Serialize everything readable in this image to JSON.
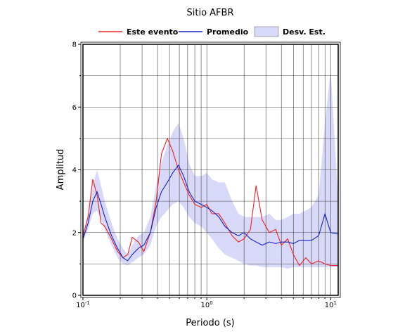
{
  "chart_data": {
    "type": "line",
    "title": "Sitio AFBR",
    "xlabel": "Periodo (s)",
    "ylabel": "Amplitud",
    "xscale": "log",
    "xlim": [
      0.1,
      11.5
    ],
    "ylim": [
      0,
      8
    ],
    "xticks": [
      {
        "value": 0.1,
        "base": "10",
        "exponent": "-1"
      },
      {
        "value": 1,
        "base": "10",
        "exponent": "0"
      },
      {
        "value": 10,
        "base": "10",
        "exponent": "1"
      }
    ],
    "x_minor_ticks": [
      0.2,
      0.3,
      0.4,
      0.5,
      0.6,
      0.7,
      0.8,
      0.9,
      2,
      3,
      4,
      5,
      6,
      7,
      8,
      9
    ],
    "yticks": [
      0,
      2,
      4,
      6,
      8
    ],
    "y_minor_ticks": [
      1,
      3,
      5,
      7
    ],
    "grid": true,
    "legend": "top",
    "x": [
      0.1,
      0.11,
      0.12,
      0.13,
      0.14,
      0.15,
      0.17,
      0.19,
      0.21,
      0.23,
      0.25,
      0.28,
      0.31,
      0.35,
      0.39,
      0.43,
      0.48,
      0.53,
      0.59,
      0.65,
      0.72,
      0.8,
      0.9,
      1.0,
      1.1,
      1.25,
      1.4,
      1.6,
      1.8,
      2.0,
      2.25,
      2.5,
      2.8,
      3.2,
      3.6,
      4,
      4.5,
      5,
      5.6,
      6.3,
      7,
      8,
      9,
      10,
      11.5
    ],
    "series": [
      {
        "name": "Este evento",
        "color": "#ee2222",
        "values": [
          1.9,
          2.5,
          3.7,
          3.2,
          2.3,
          2.2,
          1.8,
          1.4,
          1.2,
          1.3,
          1.85,
          1.7,
          1.4,
          2.0,
          3.0,
          4.5,
          5.0,
          4.6,
          4.0,
          3.6,
          3.2,
          2.9,
          2.8,
          2.9,
          2.6,
          2.6,
          2.3,
          1.9,
          1.7,
          1.8,
          2.1,
          3.5,
          2.4,
          2.0,
          2.1,
          1.6,
          1.8,
          1.3,
          0.95,
          1.2,
          1.0,
          1.1,
          1.0,
          0.95,
          0.95
        ]
      },
      {
        "name": "Promedio",
        "color": "#1122cc",
        "values": [
          1.8,
          2.3,
          3.0,
          3.3,
          2.9,
          2.5,
          1.9,
          1.5,
          1.2,
          1.1,
          1.3,
          1.5,
          1.6,
          2.0,
          2.8,
          3.3,
          3.6,
          3.9,
          4.15,
          3.8,
          3.3,
          3.0,
          2.9,
          2.8,
          2.7,
          2.5,
          2.2,
          2.0,
          1.9,
          2.0,
          1.8,
          1.7,
          1.6,
          1.7,
          1.65,
          1.7,
          1.7,
          1.65,
          1.75,
          1.75,
          1.75,
          1.9,
          2.6,
          2.0,
          1.95
        ]
      },
      {
        "name": "Desv. Est.",
        "type": "band",
        "color": "#d8d8f8",
        "upper": [
          1.9,
          2.6,
          3.5,
          4.0,
          3.5,
          3.0,
          2.3,
          1.8,
          1.5,
          1.3,
          1.6,
          1.9,
          2.0,
          2.5,
          3.5,
          4.2,
          4.8,
          5.2,
          5.5,
          5.0,
          4.2,
          3.8,
          3.8,
          3.9,
          3.7,
          3.6,
          3.6,
          3.0,
          2.6,
          2.5,
          2.5,
          2.5,
          2.5,
          2.6,
          2.4,
          2.4,
          2.5,
          2.6,
          2.6,
          2.7,
          2.8,
          3.2,
          5.5,
          7.2,
          3.0
        ],
        "lower": [
          1.7,
          2.1,
          2.6,
          2.7,
          2.4,
          2.1,
          1.6,
          1.2,
          1.0,
          0.95,
          1.05,
          1.2,
          1.3,
          1.6,
          2.2,
          2.5,
          2.7,
          2.9,
          3.0,
          2.8,
          2.5,
          2.3,
          2.2,
          2.0,
          1.8,
          1.5,
          1.3,
          1.2,
          1.1,
          1.0,
          0.95,
          0.95,
          0.9,
          0.9,
          0.9,
          0.9,
          0.85,
          0.9,
          0.9,
          0.9,
          0.9,
          0.9,
          0.9,
          0.9,
          0.9
        ]
      }
    ]
  }
}
